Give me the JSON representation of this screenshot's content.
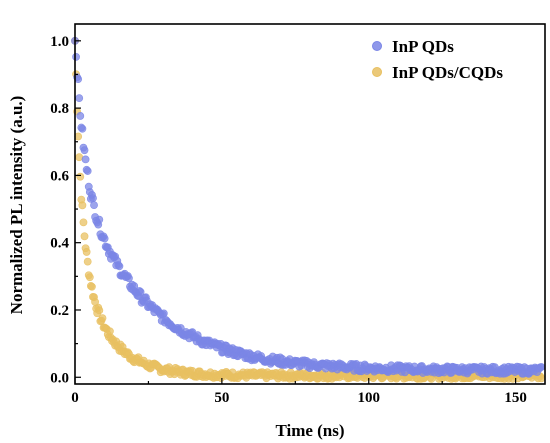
{
  "chart_data": {
    "type": "scatter",
    "title": "",
    "xlabel": "Time (ns)",
    "ylabel": "Normalized PL intensity (a.u.)",
    "xlim": [
      0,
      160
    ],
    "ylim": [
      -0.02,
      1.05
    ],
    "xticks": [
      "0",
      "50",
      "100",
      "150"
    ],
    "yticks": [
      "0.0",
      "0.2",
      "0.4",
      "0.6",
      "0.8",
      "1.0"
    ],
    "legend_position": "top-right",
    "series": [
      {
        "name": "InP QDs",
        "color": "#7b86e6",
        "decay": {
          "a1": 0.42,
          "tau1": 3.0,
          "a2": 0.58,
          "tau2": 23.0,
          "offset": 0.02
        },
        "x": [
          0,
          2,
          4,
          6,
          8,
          10,
          15,
          20,
          25,
          30,
          40,
          50,
          60,
          70,
          80,
          90,
          100,
          120,
          140,
          158
        ],
        "y": [
          1.0,
          0.8,
          0.65,
          0.55,
          0.48,
          0.43,
          0.35,
          0.29,
          0.25,
          0.21,
          0.15,
          0.11,
          0.085,
          0.065,
          0.05,
          0.04,
          0.035,
          0.03,
          0.025,
          0.02
        ]
      },
      {
        "name": "InP QDs/CQDs",
        "color": "#e8c061",
        "decay": {
          "a1": 0.62,
          "tau1": 2.2,
          "a2": 0.38,
          "tau2": 10.0,
          "offset": 0.005
        },
        "x": [
          0,
          2,
          4,
          6,
          8,
          10,
          15,
          20,
          25,
          30,
          40,
          50,
          60,
          80,
          100,
          158
        ],
        "y": [
          1.0,
          0.6,
          0.38,
          0.27,
          0.21,
          0.17,
          0.1,
          0.07,
          0.05,
          0.035,
          0.02,
          0.012,
          0.008,
          0.005,
          0.005,
          0.005
        ]
      }
    ]
  }
}
